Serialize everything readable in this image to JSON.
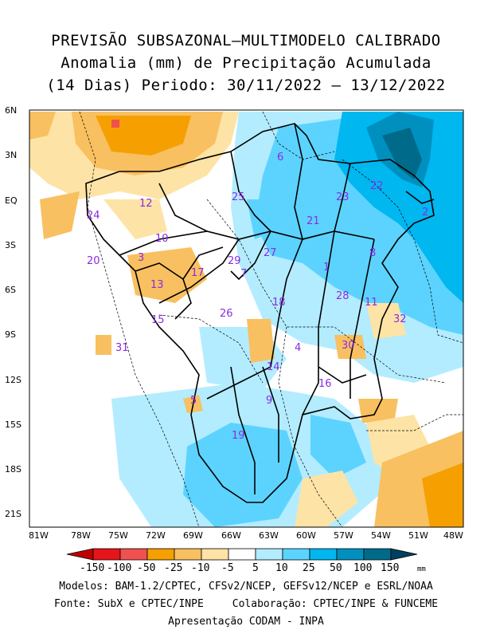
{
  "title": {
    "line1": "PREVISÃO SUBSAZONAL—MULTIMODELO CALIBRADO",
    "line2": "Anomalia (mm) de Precipitação Acumulada",
    "line3": "(14 Dias) Periodo: 30/11/2022 — 13/12/2022"
  },
  "lat_labels": [
    "6N",
    "3N",
    "EQ",
    "3S",
    "6S",
    "9S",
    "12S",
    "15S",
    "18S",
    "21S"
  ],
  "lon_labels": [
    "81W",
    "78W",
    "75W",
    "72W",
    "69W",
    "66W",
    "63W",
    "60W",
    "57W",
    "54W",
    "51W",
    "48W"
  ],
  "legend": {
    "labels": [
      "-150",
      "-100",
      "-50",
      "-25",
      "-10",
      "-5",
      "5",
      "10",
      "25",
      "50",
      "100",
      "150"
    ],
    "unit": "mm",
    "colors": [
      "#c00000",
      "#e8141c",
      "#f05050",
      "#f5a000",
      "#f8c060",
      "#fde3a5",
      "#ffffff",
      "#b3ecff",
      "#5cd3ff",
      "#00b7f0",
      "#0090c0",
      "#006a8a",
      "#004060"
    ]
  },
  "basins": [
    {
      "id": "1"
    },
    {
      "id": "2"
    },
    {
      "id": "3"
    },
    {
      "id": "4"
    },
    {
      "id": "5"
    },
    {
      "id": "6"
    },
    {
      "id": "7"
    },
    {
      "id": "8"
    },
    {
      "id": "9"
    },
    {
      "id": "10"
    },
    {
      "id": "11"
    },
    {
      "id": "12"
    },
    {
      "id": "13"
    },
    {
      "id": "14"
    },
    {
      "id": "15"
    },
    {
      "id": "16"
    },
    {
      "id": "17"
    },
    {
      "id": "18"
    },
    {
      "id": "19"
    },
    {
      "id": "20"
    },
    {
      "id": "21"
    },
    {
      "id": "22"
    },
    {
      "id": "23"
    },
    {
      "id": "24"
    },
    {
      "id": "25"
    },
    {
      "id": "26"
    },
    {
      "id": "27"
    },
    {
      "id": "28"
    },
    {
      "id": "29"
    },
    {
      "id": "30"
    },
    {
      "id": "31"
    },
    {
      "id": "32"
    }
  ],
  "footer": {
    "models": "Modelos: BAM-1.2/CPTEC, CFSv2/NCEP, GEFSv12/NCEP e ESRL/NOAA",
    "source": "Fonte: SubX e CPTEC/INPE",
    "collab": "Colaboração: CPTEC/INPE & FUNCEME",
    "presentation": "Apresentação CODAM - INPA"
  }
}
